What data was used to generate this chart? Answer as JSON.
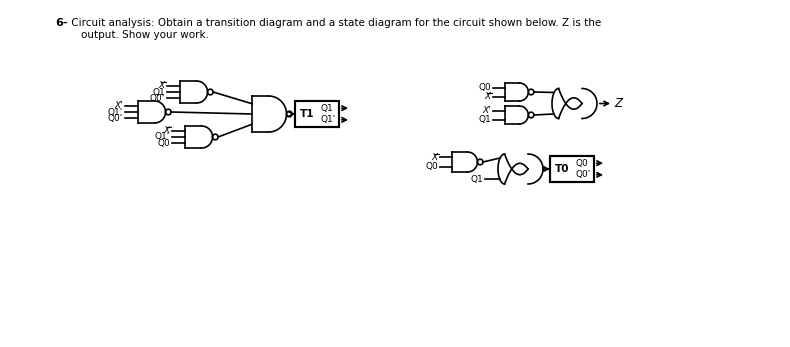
{
  "bg_color": "#ffffff",
  "line_color": "#000000",
  "fig_width": 7.9,
  "fig_height": 3.47,
  "title_num": "6-",
  "title_line1": " Circuit analysis: Obtain a transition diagram and a state diagram for the circuit shown below. Z is the",
  "title_line2": "    output. Show your work."
}
